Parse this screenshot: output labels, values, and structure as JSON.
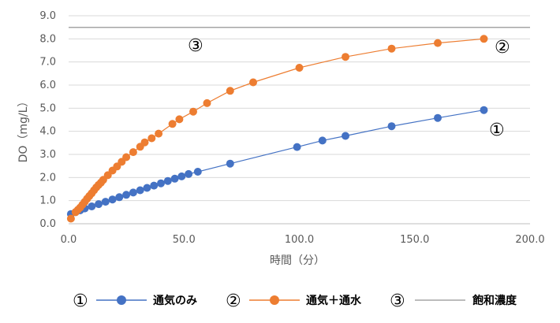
{
  "chart_data": {
    "type": "line",
    "xlabel": "時間（分）",
    "ylabel": "DO（mg/L）",
    "xlim": [
      0,
      200
    ],
    "ylim": [
      0,
      9
    ],
    "x_ticks": [
      "0.0",
      "50.0",
      "100.0",
      "150.0",
      "200.0"
    ],
    "y_ticks": [
      "0.0",
      "1.0",
      "2.0",
      "3.0",
      "4.0",
      "5.0",
      "6.0",
      "7.0",
      "8.0",
      "9.0"
    ],
    "grid": "horizontal",
    "legend_position": "bottom",
    "series": [
      {
        "name": "通気のみ",
        "marker_label": "①",
        "color": "#4472c4",
        "points": [
          [
            1,
            0.42
          ],
          [
            3,
            0.5
          ],
          [
            5,
            0.58
          ],
          [
            7,
            0.66
          ],
          [
            10,
            0.75
          ],
          [
            13,
            0.85
          ],
          [
            16,
            0.95
          ],
          [
            19,
            1.05
          ],
          [
            22,
            1.15
          ],
          [
            25,
            1.25
          ],
          [
            28,
            1.35
          ],
          [
            31,
            1.45
          ],
          [
            34,
            1.55
          ],
          [
            37,
            1.65
          ],
          [
            40,
            1.75
          ],
          [
            43,
            1.85
          ],
          [
            46,
            1.95
          ],
          [
            49,
            2.05
          ],
          [
            52,
            2.15
          ],
          [
            56,
            2.25
          ],
          [
            70,
            2.6
          ],
          [
            99,
            3.32
          ],
          [
            110,
            3.6
          ],
          [
            120,
            3.8
          ],
          [
            140,
            4.22
          ],
          [
            160,
            4.58
          ],
          [
            180,
            4.92
          ]
        ]
      },
      {
        "name": "通気＋通水",
        "marker_label": "②",
        "color": "#ed7d31",
        "points": [
          [
            1,
            0.22
          ],
          [
            3,
            0.5
          ],
          [
            4,
            0.6
          ],
          [
            5,
            0.7
          ],
          [
            6,
            0.82
          ],
          [
            7,
            0.95
          ],
          [
            8,
            1.08
          ],
          [
            9,
            1.2
          ],
          [
            10,
            1.32
          ],
          [
            11,
            1.45
          ],
          [
            12,
            1.57
          ],
          [
            13,
            1.68
          ],
          [
            14,
            1.78
          ],
          [
            15,
            1.9
          ],
          [
            17,
            2.1
          ],
          [
            19,
            2.3
          ],
          [
            21,
            2.48
          ],
          [
            23,
            2.68
          ],
          [
            25,
            2.88
          ],
          [
            28,
            3.1
          ],
          [
            31,
            3.33
          ],
          [
            33,
            3.52
          ],
          [
            36,
            3.7
          ],
          [
            39,
            3.9
          ],
          [
            45,
            4.32
          ],
          [
            48,
            4.52
          ],
          [
            54,
            4.85
          ],
          [
            60,
            5.22
          ],
          [
            70,
            5.75
          ],
          [
            80,
            6.12
          ],
          [
            100,
            6.75
          ],
          [
            120,
            7.22
          ],
          [
            140,
            7.58
          ],
          [
            160,
            7.82
          ],
          [
            180,
            8.0
          ]
        ]
      },
      {
        "name": "飽和濃度",
        "marker_label": "③",
        "color": "#a5a5a5",
        "points": [
          [
            0,
            8.5
          ],
          [
            200,
            8.5
          ]
        ]
      }
    ]
  }
}
